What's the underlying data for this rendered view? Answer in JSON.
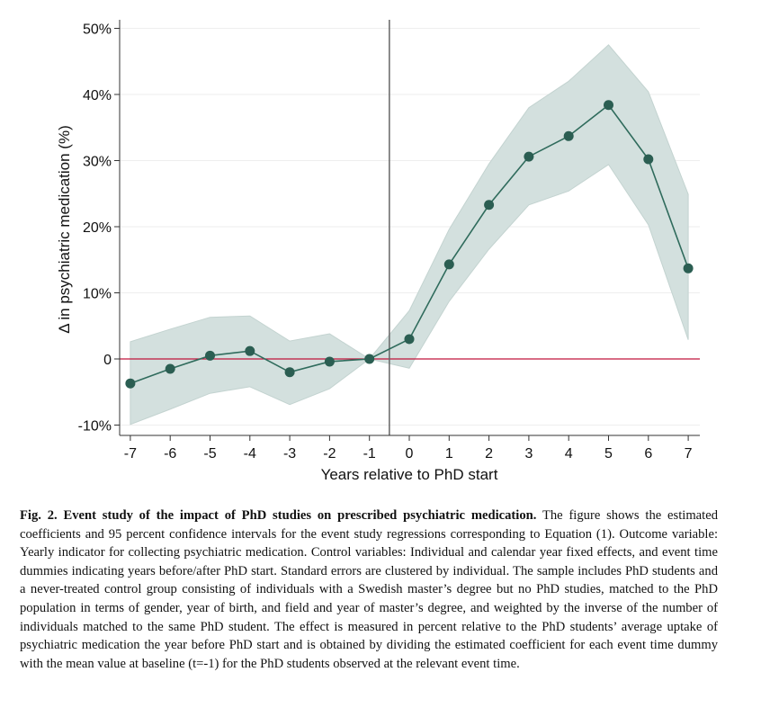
{
  "chart_data": {
    "type": "line",
    "title": "",
    "xlabel": "Years relative to PhD start",
    "ylabel": "Δ in psychiatric medication (%)",
    "x": [
      -7,
      -6,
      -5,
      -4,
      -3,
      -2,
      -1,
      0,
      1,
      2,
      3,
      4,
      5,
      6,
      7
    ],
    "xticks": [
      "-7",
      "-6",
      "-5",
      "-4",
      "-3",
      "-2",
      "-1",
      "0",
      "1",
      "2",
      "3",
      "4",
      "5",
      "6",
      "7"
    ],
    "yticks": [
      -10,
      0,
      10,
      20,
      30,
      40,
      50
    ],
    "ytick_labels": [
      "-10%",
      "0",
      "10%",
      "20%",
      "30%",
      "40%",
      "50%"
    ],
    "ylim": [
      -11,
      51
    ],
    "xlim": [
      -7.2,
      7.2
    ],
    "grid": true,
    "reference_lines": {
      "horizontal_y": 0,
      "vertical_x": -0.5
    },
    "series": [
      {
        "values": [
          -3.7,
          -1.5,
          0.5,
          1.2,
          -2.0,
          -0.4,
          0,
          3.0,
          14.3,
          23.3,
          30.6,
          33.7,
          38.4,
          30.2,
          13.7
        ],
        "ci_upper": [
          2.6,
          4.5,
          6.3,
          6.5,
          2.7,
          3.8,
          0,
          7.3,
          19.6,
          29.5,
          38.0,
          42.0,
          47.5,
          40.4,
          24.9
        ],
        "ci_lower": [
          -9.9,
          -7.6,
          -5.2,
          -4.2,
          -6.9,
          -4.5,
          0,
          -1.4,
          8.7,
          16.6,
          23.3,
          25.4,
          29.4,
          20.3,
          2.9
        ]
      }
    ],
    "colors": {
      "line": "#2f6b5c",
      "marker": "#2b5e52",
      "ci_band": "#d3e0de",
      "zero_line": "#c0143c",
      "vline": "#666666",
      "grid": "#eeeeee"
    }
  },
  "caption": {
    "label": "Fig. 2. Event study of the impact of PhD studies on prescribed psychiatric medication.",
    "text": " The figure shows the estimated coefficients and 95 percent confidence intervals for the event study regressions corresponding to Equation (1). Outcome variable: Yearly indicator for collecting psychiatric medication. Control variables: Individual and calendar year fixed effects, and event time dummies indicating years before/after PhD start. Standard errors are clustered by individual. The sample includes PhD students and a never-treated control group consisting of individuals with a Swedish master’s degree but no PhD studies, matched to the PhD population in terms of gender, year of birth, and field and year of master’s degree, and weighted by the inverse of the number of individuals matched to the same PhD student. The effect is measured in percent relative to the PhD students’ average uptake of psychiatric medication the year before PhD start and is obtained by dividing the estimated coefficient for each event time dummy with the mean value at baseline (t=-1) for the PhD students observed at the relevant event time."
  }
}
